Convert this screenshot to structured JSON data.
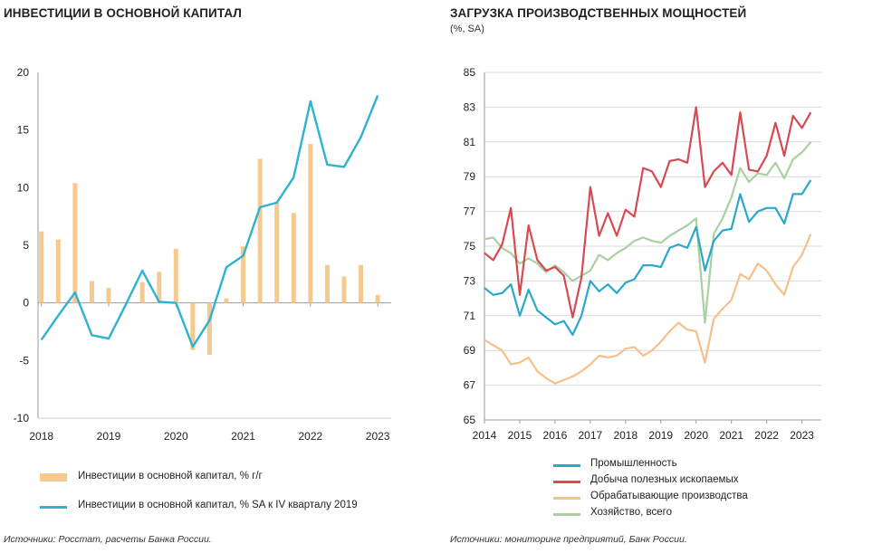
{
  "left": {
    "title": "ИНВЕСТИЦИИ В ОСНОВНОЙ КАПИТАЛ",
    "source": "Источники: Росстат, расчеты Банка России.",
    "legend": [
      {
        "label": "Инвестиции в основной капитал, % г/г",
        "color": "#f6c98e",
        "kind": "bar"
      },
      {
        "label": "Инвестиции в основной капитал, % SA к IV кварталу 2019",
        "color": "#2db3d1",
        "kind": "line"
      }
    ]
  },
  "right": {
    "title": "ЗАГРУЗКА ПРОИЗВОДСТВЕННЫХ МОЩНОСТЕЙ",
    "subtitle": "(%, SA)",
    "source": "Источники: мониторинг предприятий, Банк России.",
    "legend": [
      {
        "label": "Промышленность",
        "color": "#2aa8cc"
      },
      {
        "label": "Добыча полезных ископаемых",
        "color": "#d64a52"
      },
      {
        "label": "Обрабатывающие производства",
        "color": "#f6c08a"
      },
      {
        "label": "Хозяйство, всего",
        "color": "#a9d0a0"
      }
    ]
  },
  "chart_data": [
    {
      "type": "bar",
      "title": "ИНВЕСТИЦИИ В ОСНОВНОЙ КАПИТАЛ",
      "ylim": [
        -10,
        20
      ],
      "yticks": [
        -10,
        -5,
        0,
        5,
        10,
        15,
        20
      ],
      "xticks": [
        "2018",
        "2019",
        "2020",
        "2021",
        "2022",
        "2023"
      ],
      "x": [
        2018.0,
        2018.25,
        2018.5,
        2018.75,
        2019.0,
        2019.25,
        2019.5,
        2019.75,
        2020.0,
        2020.25,
        2020.5,
        2020.75,
        2021.0,
        2021.25,
        2021.5,
        2021.75,
        2022.0,
        2022.25,
        2022.5,
        2022.75,
        2023.0
      ],
      "series": [
        {
          "name": "Инвестиции в основной капитал, % г/г",
          "kind": "bar",
          "color": "#f6c98e",
          "values": [
            6.2,
            5.5,
            10.4,
            1.9,
            1.3,
            null,
            1.8,
            2.7,
            4.7,
            -4.1,
            -4.5,
            0.4,
            4.9,
            12.5,
            8.7,
            7.8,
            13.8,
            3.3,
            2.3,
            3.3,
            0.7
          ]
        },
        {
          "name": "Инвестиции в основной капитал, % SA к IV кварталу 2019",
          "kind": "line",
          "color": "#2db3d1",
          "values": [
            -3.2,
            -1.1,
            0.9,
            -2.8,
            -3.1,
            -0.2,
            2.8,
            0.1,
            0.0,
            -3.8,
            -1.5,
            3.1,
            4.1,
            8.3,
            8.7,
            10.9,
            17.5,
            12.0,
            11.8,
            14.4,
            18.0
          ]
        }
      ]
    },
    {
      "type": "line",
      "title": "ЗАГРУЗКА ПРОИЗВОДСТВЕННЫХ МОЩНОСТЕЙ",
      "subtitle": "(%, SA)",
      "ylim": [
        65,
        85
      ],
      "yticks": [
        65,
        67,
        69,
        71,
        73,
        75,
        77,
        79,
        81,
        83,
        85
      ],
      "xticks": [
        "2014",
        "2015",
        "2016",
        "2017",
        "2018",
        "2019",
        "2020",
        "2021",
        "2022",
        "2023"
      ],
      "x": [
        2014.0,
        2014.25,
        2014.5,
        2014.75,
        2015.0,
        2015.25,
        2015.5,
        2015.75,
        2016.0,
        2016.25,
        2016.5,
        2016.75,
        2017.0,
        2017.25,
        2017.5,
        2017.75,
        2018.0,
        2018.25,
        2018.5,
        2018.75,
        2019.0,
        2019.25,
        2019.5,
        2019.75,
        2020.0,
        2020.25,
        2020.5,
        2020.75,
        2021.0,
        2021.25,
        2021.5,
        2021.75,
        2022.0,
        2022.25,
        2022.5,
        2022.75,
        2023.0,
        2023.25
      ],
      "series": [
        {
          "name": "Промышленность",
          "color": "#2aa8cc",
          "values": [
            72.6,
            72.2,
            72.3,
            72.8,
            71.0,
            72.5,
            71.3,
            70.9,
            70.5,
            70.7,
            69.9,
            71.0,
            73.0,
            72.4,
            72.8,
            72.3,
            72.9,
            73.1,
            73.9,
            73.9,
            73.8,
            74.9,
            75.1,
            74.9,
            76.1,
            73.6,
            75.3,
            75.9,
            76.0,
            78.0,
            76.4,
            77.0,
            77.2,
            77.2,
            76.3,
            78.0,
            78.0,
            78.8
          ]
        },
        {
          "name": "Добыча полезных ископаемых",
          "color": "#d64a52",
          "values": [
            74.6,
            74.2,
            75.1,
            77.2,
            72.2,
            76.2,
            74.2,
            73.6,
            73.8,
            73.3,
            70.9,
            73.2,
            78.4,
            75.6,
            76.9,
            75.6,
            77.1,
            76.7,
            79.5,
            79.3,
            78.4,
            79.9,
            80.0,
            79.8,
            83.0,
            78.4,
            79.3,
            79.8,
            79.1,
            82.7,
            79.4,
            79.3,
            80.2,
            82.1,
            80.2,
            82.5,
            81.8,
            82.7
          ]
        },
        {
          "name": "Обрабатывающие производства",
          "color": "#f6c08a",
          "values": [
            69.6,
            69.3,
            69.0,
            68.2,
            68.3,
            68.6,
            67.8,
            67.4,
            67.1,
            67.3,
            67.5,
            67.8,
            68.2,
            68.7,
            68.6,
            68.7,
            69.1,
            69.2,
            68.7,
            69.0,
            69.5,
            70.1,
            70.6,
            70.2,
            70.1,
            68.3,
            70.8,
            71.4,
            71.9,
            73.4,
            73.1,
            74.0,
            73.6,
            72.8,
            72.2,
            73.8,
            74.5,
            75.7
          ]
        },
        {
          "name": "Хозяйство, всего",
          "color": "#a9d0a0",
          "values": [
            75.4,
            75.5,
            74.9,
            74.6,
            74.0,
            74.3,
            74.0,
            73.5,
            73.9,
            73.5,
            73.0,
            73.3,
            73.6,
            74.5,
            74.2,
            74.6,
            74.9,
            75.3,
            75.5,
            75.3,
            75.2,
            75.6,
            75.9,
            76.2,
            76.6,
            70.6,
            75.7,
            76.6,
            77.8,
            79.5,
            78.7,
            79.2,
            79.1,
            79.8,
            78.9,
            80.0,
            80.4,
            81.0
          ]
        }
      ]
    }
  ]
}
